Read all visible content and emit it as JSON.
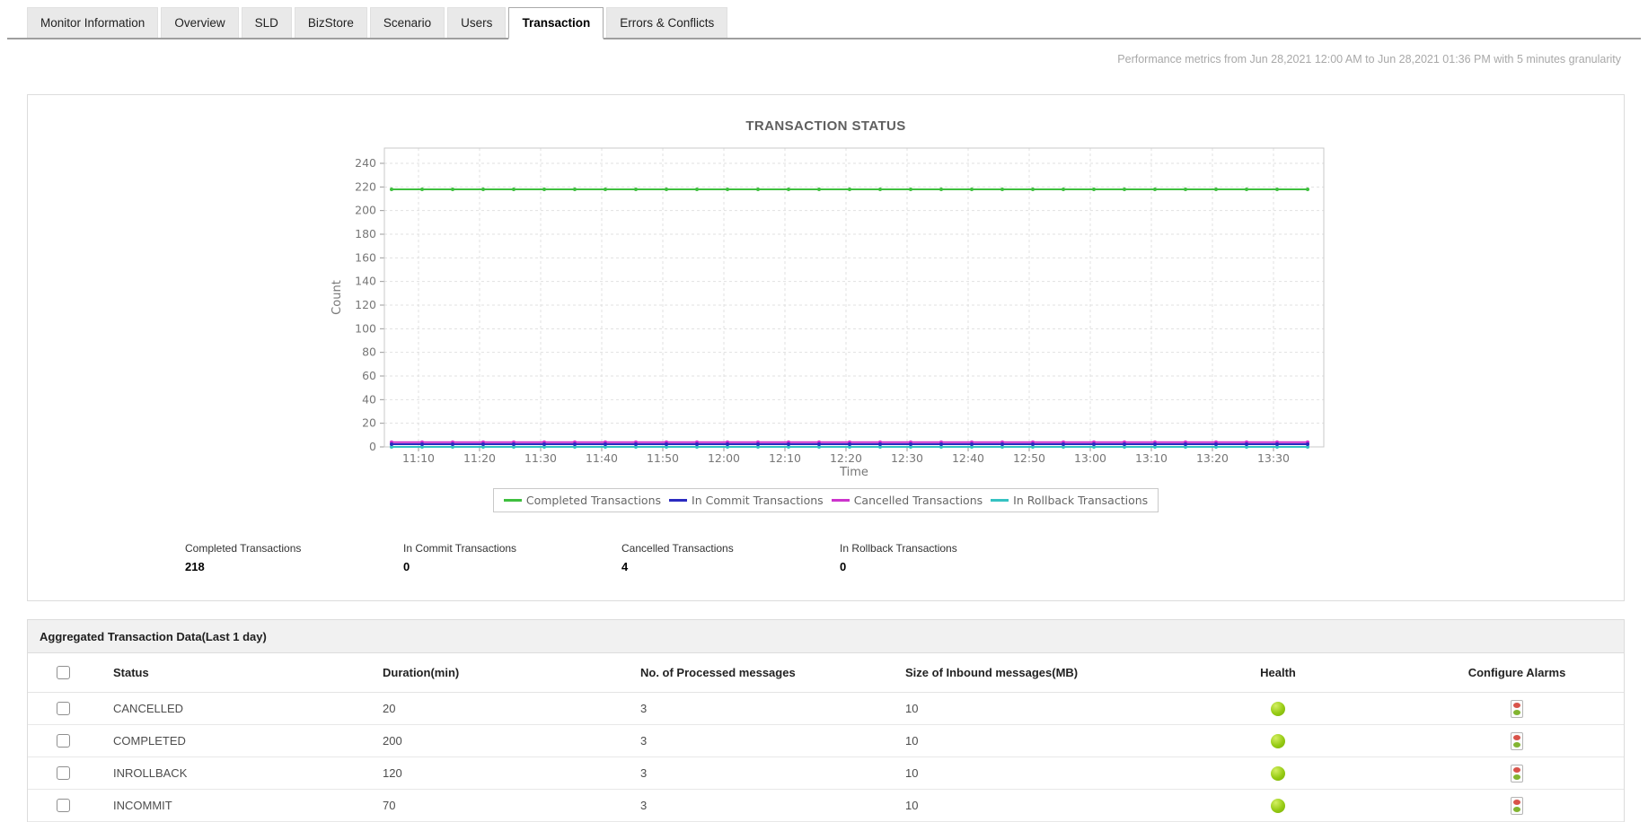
{
  "tabs": {
    "items": [
      {
        "label": "Monitor Information",
        "active": false
      },
      {
        "label": "Overview",
        "active": false
      },
      {
        "label": "SLD",
        "active": false
      },
      {
        "label": "BizStore",
        "active": false
      },
      {
        "label": "Scenario",
        "active": false
      },
      {
        "label": "Users",
        "active": false
      },
      {
        "label": "Transaction",
        "active": true
      },
      {
        "label": "Errors & Conflicts",
        "active": false
      }
    ]
  },
  "header": {
    "performance_note": "Performance metrics from Jun 28,2021 12:00 AM to Jun 28,2021 01:36 PM with 5 minutes granularity"
  },
  "chart_data": {
    "type": "line",
    "title": "TRANSACTION STATUS",
    "xlabel": "Time",
    "ylabel": "Count",
    "ylim": [
      0,
      250
    ],
    "grid": true,
    "legend_position": "bottom",
    "x_granularity": "5 minutes",
    "y_ticks": [
      0,
      20,
      40,
      60,
      80,
      100,
      120,
      140,
      160,
      180,
      200,
      220,
      240
    ],
    "x_ticks": [
      "11:10",
      "11:20",
      "11:30",
      "11:40",
      "11:50",
      "12:00",
      "12:10",
      "12:20",
      "12:30",
      "12:40",
      "12:50",
      "13:00",
      "13:10",
      "13:20",
      "13:30"
    ],
    "series": [
      {
        "name": "Completed Transactions",
        "color": "#3fbf3f",
        "value": 218,
        "shape": "constant-line"
      },
      {
        "name": "In Commit Transactions",
        "color": "#2b2bc0",
        "value": 0,
        "shape": "constant-line"
      },
      {
        "name": "Cancelled Transactions",
        "color": "#cc33cc",
        "value": 4,
        "shape": "constant-line"
      },
      {
        "name": "In Rollback Transactions",
        "color": "#35c2c2",
        "value": 0,
        "shape": "constant-line"
      }
    ]
  },
  "summary": {
    "items": [
      {
        "label": "Completed Transactions",
        "value": "218"
      },
      {
        "label": "In Commit Transactions",
        "value": "0"
      },
      {
        "label": "Cancelled Transactions",
        "value": "4"
      },
      {
        "label": "In Rollback Transactions",
        "value": "0"
      }
    ]
  },
  "table": {
    "title": "Aggregated Transaction Data(Last 1 day)",
    "columns": [
      "Status",
      "Duration(min)",
      "No. of Processed messages",
      "Size of Inbound messages(MB)",
      "Health",
      "Configure Alarms"
    ],
    "health_color": "#8ec50f",
    "rows": [
      {
        "status": "CANCELLED",
        "duration": "20",
        "processed": "3",
        "inbound": "10",
        "health": "up"
      },
      {
        "status": "COMPLETED",
        "duration": "200",
        "processed": "3",
        "inbound": "10",
        "health": "up"
      },
      {
        "status": "INROLLBACK",
        "duration": "120",
        "processed": "3",
        "inbound": "10",
        "health": "up"
      },
      {
        "status": "INCOMMIT",
        "duration": "70",
        "processed": "3",
        "inbound": "10",
        "health": "up"
      }
    ]
  }
}
